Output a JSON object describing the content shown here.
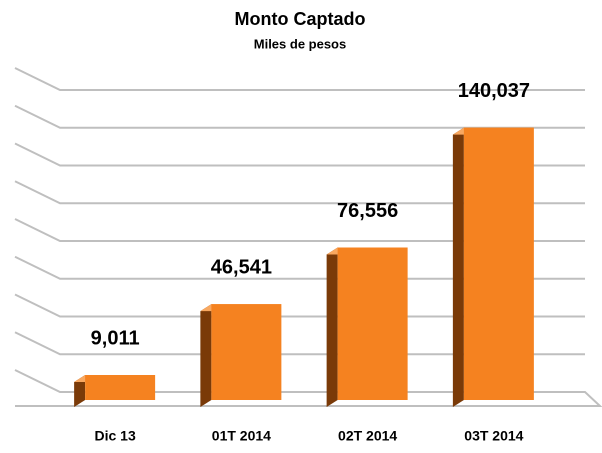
{
  "chart_data": {
    "type": "bar",
    "title": "Monto Captado",
    "subtitle": "Miles de pesos",
    "categories": [
      "Dic 13",
      "01T 2014",
      "02T 2014",
      "03T 2014"
    ],
    "values": [
      9011,
      46541,
      76556,
      140037
    ],
    "value_labels": [
      "9,011",
      "46,541",
      "76,556",
      "140,037"
    ],
    "color": "#f58220",
    "ylim": [
      0,
      160000
    ],
    "yticks": [
      0,
      20000,
      40000,
      60000,
      80000,
      100000,
      120000,
      140000,
      160000
    ],
    "grid": true
  }
}
